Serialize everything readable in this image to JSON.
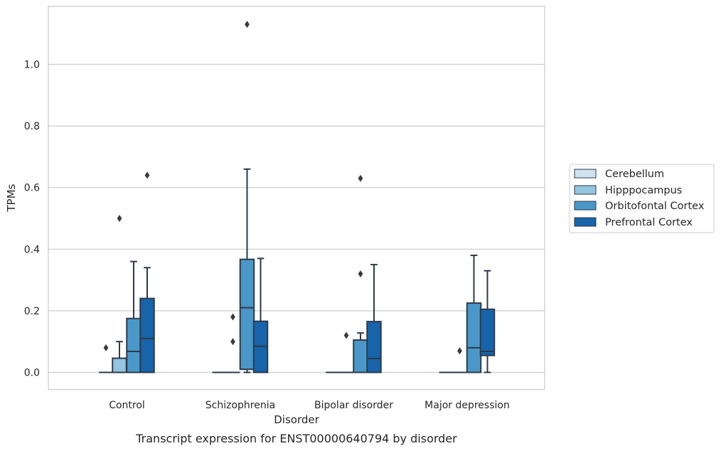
{
  "chart_data": {
    "type": "box",
    "caption": "Transcript expression for ENST00000640794 by disorder",
    "xlabel": "Disorder",
    "ylabel": "TPMs",
    "ylim": [
      -0.055,
      1.19
    ],
    "yticks": [
      0.0,
      0.2,
      0.4,
      0.6,
      0.8,
      1.0
    ],
    "ytick_labels": [
      "0.0",
      "0.2",
      "0.4",
      "0.6",
      "0.8",
      "1.0"
    ],
    "grid": "horizontal",
    "legend_placement": "center-right-outside",
    "categories": [
      "Control",
      "Schizophrenia",
      "Bipolar disorder",
      "Major depression"
    ],
    "series": [
      {
        "name": "Cerebellum",
        "color": "#d0e1f2",
        "boxes": [
          {
            "q1": 0,
            "median": 0,
            "q3": 0,
            "whisker_low": 0,
            "whisker_high": 0,
            "outliers": [
              0.08
            ]
          },
          {
            "q1": 0,
            "median": 0,
            "q3": 0,
            "whisker_low": 0,
            "whisker_high": 0,
            "outliers": []
          },
          {
            "q1": 0,
            "median": 0,
            "q3": 0,
            "whisker_low": 0,
            "whisker_high": 0,
            "outliers": []
          },
          {
            "q1": 0,
            "median": 0,
            "q3": 0,
            "whisker_low": 0,
            "whisker_high": 0,
            "outliers": []
          }
        ]
      },
      {
        "name": "Hipppocampus",
        "color": "#94c4df",
        "boxes": [
          {
            "q1": 0,
            "median": 0,
            "q3": 0.046,
            "whisker_low": 0,
            "whisker_high": 0.1,
            "outliers": [
              0.5
            ]
          },
          {
            "q1": 0,
            "median": 0,
            "q3": 0,
            "whisker_low": 0,
            "whisker_high": 0,
            "outliers": [
              0.18,
              0.1
            ]
          },
          {
            "q1": 0,
            "median": 0,
            "q3": 0,
            "whisker_low": 0,
            "whisker_high": 0,
            "outliers": [
              0.12
            ]
          },
          {
            "q1": 0,
            "median": 0,
            "q3": 0,
            "whisker_low": 0,
            "whisker_high": 0,
            "outliers": [
              0.07
            ]
          }
        ]
      },
      {
        "name": "Orbitofontal Cortex",
        "color": "#4a98c9",
        "boxes": [
          {
            "q1": 0,
            "median": 0.068,
            "q3": 0.175,
            "whisker_low": 0,
            "whisker_high": 0.36,
            "outliers": []
          },
          {
            "q1": 0.01,
            "median": 0.21,
            "q3": 0.367,
            "whisker_low": 0,
            "whisker_high": 0.66,
            "outliers": [
              1.13
            ]
          },
          {
            "q1": 0,
            "median": 0,
            "q3": 0.105,
            "whisker_low": 0,
            "whisker_high": 0.128,
            "outliers": [
              0.63,
              0.32
            ]
          },
          {
            "q1": 0,
            "median": 0.08,
            "q3": 0.225,
            "whisker_low": 0,
            "whisker_high": 0.38,
            "outliers": []
          }
        ]
      },
      {
        "name": "Prefrontal Cortex",
        "color": "#1764ab",
        "boxes": [
          {
            "q1": 0,
            "median": 0.11,
            "q3": 0.24,
            "whisker_low": 0,
            "whisker_high": 0.34,
            "outliers": [
              0.64
            ]
          },
          {
            "q1": 0,
            "median": 0.085,
            "q3": 0.166,
            "whisker_low": 0,
            "whisker_high": 0.37,
            "outliers": []
          },
          {
            "q1": 0,
            "median": 0.045,
            "q3": 0.165,
            "whisker_low": 0,
            "whisker_high": 0.35,
            "outliers": []
          },
          {
            "q1": 0.055,
            "median": 0.068,
            "q3": 0.205,
            "whisker_low": 0,
            "whisker_high": 0.33,
            "outliers": []
          }
        ]
      }
    ]
  }
}
